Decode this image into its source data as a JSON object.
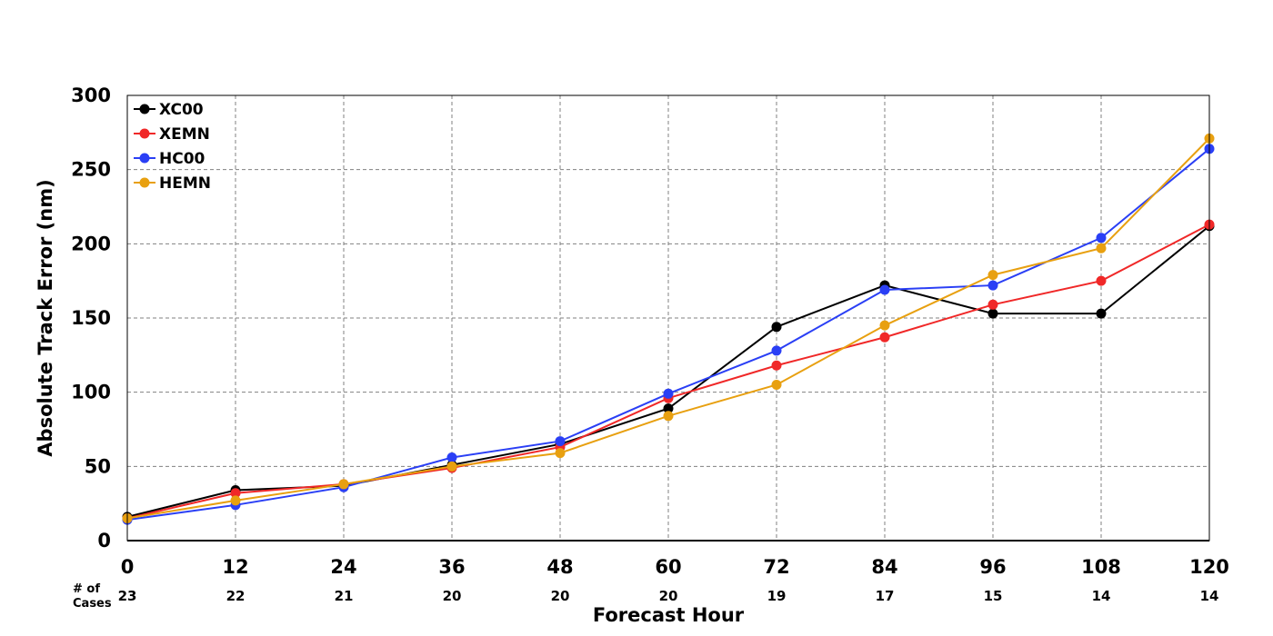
{
  "chart_data": {
    "type": "line",
    "title": "",
    "xlabel": "Forecast Hour",
    "ylabel": "Absolute Track Error (nm)",
    "x": [
      0,
      12,
      24,
      36,
      48,
      60,
      72,
      84,
      96,
      108,
      120
    ],
    "xlim": [
      0,
      120
    ],
    "ylim": [
      0,
      300
    ],
    "yticks": [
      0,
      50,
      100,
      150,
      200,
      250,
      300
    ],
    "grid": true,
    "legend_position": "top-left",
    "cases_label": "# of Cases",
    "cases": [
      23,
      22,
      21,
      20,
      20,
      20,
      19,
      17,
      15,
      14,
      14
    ],
    "series": [
      {
        "name": "XC00",
        "color": "#000000",
        "values": [
          16,
          34,
          37,
          51,
          65,
          89,
          144,
          172,
          153,
          153,
          212
        ]
      },
      {
        "name": "XEMN",
        "color": "#f02828",
        "values": [
          15,
          32,
          38,
          49,
          63,
          96,
          118,
          137,
          159,
          175,
          213
        ]
      },
      {
        "name": "HC00",
        "color": "#2a3ff5",
        "values": [
          14,
          24,
          36,
          56,
          67,
          99,
          128,
          169,
          172,
          204,
          264
        ]
      },
      {
        "name": "HEMN",
        "color": "#e8a010",
        "values": [
          15,
          27,
          38,
          50,
          59,
          84,
          105,
          145,
          179,
          197,
          271
        ]
      }
    ]
  }
}
